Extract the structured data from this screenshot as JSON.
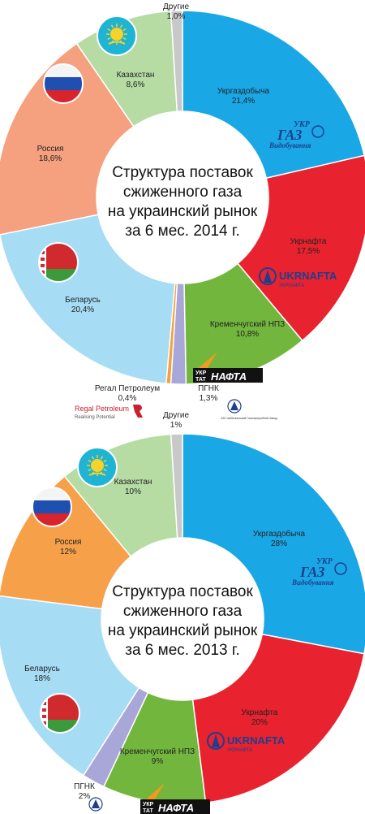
{
  "colors": {
    "ukrgaz": "#1aa7e6",
    "ukrnafta": "#e8222e",
    "kremen": "#72b63e",
    "pgnk": "#a9a6d8",
    "regal": "#f4a13c",
    "belarus": "#a6dcf4",
    "russia_2014": "#f5a07e",
    "russia_2013": "#f6a04a",
    "kazakh": "#b6dca4",
    "other": "#c8c8c8"
  },
  "chart_data": [
    {
      "type": "pie",
      "title": "Структура поставок сжиженного газа на украинский рынок за 6 мес. 2014 г.",
      "title_lines": [
        "Структура поставок",
        "сжиженного газа",
        "на украинский рынок",
        "за 6 мес. 2014 г."
      ],
      "slices": [
        {
          "name": "Укргаздобыча",
          "value": 21.4,
          "label": "21,4%",
          "color": "#1aa7e6"
        },
        {
          "name": "Укрнафта",
          "value": 17.5,
          "label": "17,5%",
          "color": "#e8222e"
        },
        {
          "name": "Кременчугский НПЗ",
          "value": 10.8,
          "label": "10,8%",
          "color": "#72b63e"
        },
        {
          "name": "ПГНК",
          "value": 1.3,
          "label": "1,3%",
          "color": "#a9a6d8"
        },
        {
          "name": "Регал Петролеум",
          "value": 0.4,
          "label": "0,4%",
          "color": "#f4a13c"
        },
        {
          "name": "Беларусь",
          "value": 20.4,
          "label": "20,4%",
          "color": "#a6dcf4"
        },
        {
          "name": "Россия",
          "value": 18.6,
          "label": "18,6%",
          "color": "#f5a07e"
        },
        {
          "name": "Казахстан",
          "value": 8.6,
          "label": "8,6%",
          "color": "#b6dca4"
        },
        {
          "name": "Другие",
          "value": 1.0,
          "label": "1,0%",
          "color": "#c8c8c8"
        }
      ]
    },
    {
      "type": "pie",
      "title": "Структура поставок сжиженного газа на украинский рынок за 6 мес. 2013 г.",
      "title_lines": [
        "Структура поставок",
        "сжиженного газа",
        "на украинский рынок",
        "за 6 мес. 2013 г."
      ],
      "slices": [
        {
          "name": "Укргаздобыча",
          "value": 28,
          "label": "28%",
          "color": "#1aa7e6"
        },
        {
          "name": "Укрнафта",
          "value": 20,
          "label": "20%",
          "color": "#e8222e"
        },
        {
          "name": "Кременчугский НПЗ",
          "value": 9,
          "label": "9%",
          "color": "#72b63e"
        },
        {
          "name": "ПГНК",
          "value": 2,
          "label": "2%",
          "color": "#a9a6d8"
        },
        {
          "name": "Беларусь",
          "value": 18,
          "label": "18%",
          "color": "#a6dcf4"
        },
        {
          "name": "Россия",
          "value": 12,
          "label": "12%",
          "color": "#f6a04a"
        },
        {
          "name": "Казахстан",
          "value": 10,
          "label": "10%",
          "color": "#b6dca4"
        },
        {
          "name": "Другие",
          "value": 1,
          "label": "1%",
          "color": "#c8c8c8"
        }
      ]
    }
  ],
  "logos": {
    "ukrgaz_top": "УКР",
    "ukrgaz_main": "ГАЗ",
    "ukrgaz_sub": "Видобування",
    "ukrnafta": "UKRNAFTA",
    "ukrnafta_sub": "УКРНАФТА",
    "ukrtat_top": "УКР",
    "ukrtat_bottom": "ТАТ",
    "nafta": "НАФТА",
    "regal_name": "Regal Petroleum",
    "regal_tagline": "Realising Potential",
    "pgnk_caption": "ЗАТ Шебелинський Газопереробний Завод"
  },
  "flags": [
    "kazakhstan-flag",
    "russia-flag",
    "belarus-flag"
  ]
}
